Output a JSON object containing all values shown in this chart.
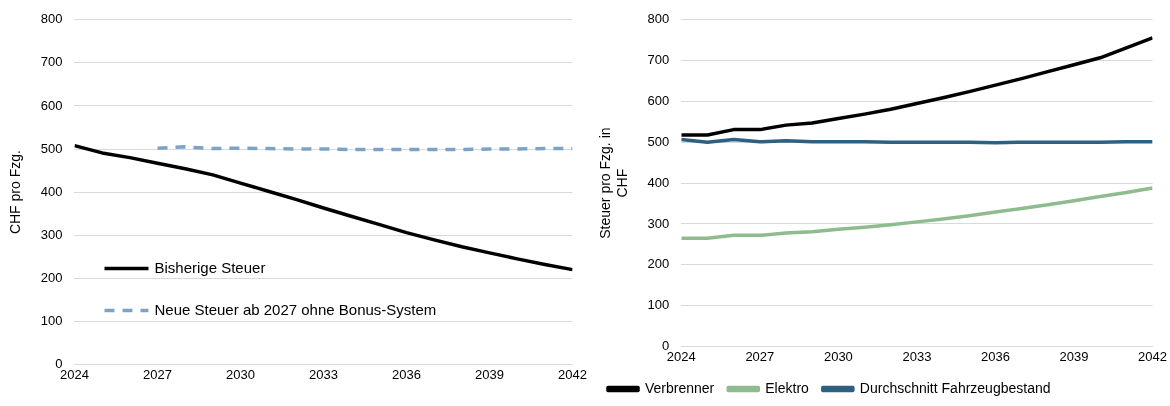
{
  "chart_data": [
    {
      "type": "line",
      "ylabel": "CHF pro Fzg.",
      "x": [
        2024,
        2025,
        2026,
        2027,
        2028,
        2029,
        2030,
        2031,
        2032,
        2033,
        2034,
        2035,
        2036,
        2037,
        2038,
        2039,
        2040,
        2041,
        2042
      ],
      "xlim": [
        2024,
        2042
      ],
      "xticks": [
        2024,
        2027,
        2030,
        2033,
        2036,
        2039,
        2042
      ],
      "ylim": [
        0,
        800
      ],
      "yticks": [
        0,
        100,
        200,
        300,
        400,
        500,
        600,
        700,
        800
      ],
      "grid": "y",
      "legend": "bottom left",
      "marker": "none",
      "series": [
        {
          "name": "Bisherige Steuer",
          "color": "#000000",
          "line_style": "solid",
          "values": [
            508,
            491,
            480,
            467,
            454,
            440,
            421,
            402,
            383,
            363,
            344,
            325,
            306,
            289,
            273,
            259,
            245,
            232,
            220
          ]
        },
        {
          "name": "Neue Steuer ab 2027 ohne Bonus-System",
          "color": "#7ba3c5",
          "line_style": "dashed",
          "values": [
            null,
            null,
            null,
            502,
            505,
            501,
            502,
            501,
            500,
            500,
            499,
            499,
            499,
            499,
            499,
            500,
            500,
            501,
            501
          ]
        }
      ]
    },
    {
      "type": "line",
      "ylabel": "Steuer pro Fzg. in CHF",
      "x": [
        2024,
        2025,
        2026,
        2027,
        2028,
        2029,
        2030,
        2031,
        2032,
        2033,
        2034,
        2035,
        2036,
        2037,
        2038,
        2039,
        2040,
        2041,
        2042
      ],
      "xlim": [
        2024,
        2042
      ],
      "xticks": [
        2024,
        2027,
        2030,
        2033,
        2036,
        2039,
        2042
      ],
      "ylim": [
        0,
        800
      ],
      "yticks": [
        0,
        100,
        200,
        300,
        400,
        500,
        600,
        700,
        800
      ],
      "grid": "y",
      "legend": "bottom",
      "marker": "none",
      "series": [
        {
          "name": "Verbrenner",
          "color": "#000000",
          "line_style": "solid",
          "values": [
            518,
            518,
            531,
            531,
            542,
            547,
            558,
            569,
            581,
            595,
            609,
            624,
            640,
            656,
            673,
            690,
            707,
            731,
            756
          ]
        },
        {
          "name": "Elektro",
          "color": "#8fbc8f",
          "line_style": "solid",
          "values": [
            265,
            265,
            272,
            272,
            278,
            281,
            287,
            292,
            298,
            305,
            312,
            320,
            329,
            338,
            347,
            357,
            367,
            377,
            388
          ]
        },
        {
          "name": "Durchschnitt Fahrzeugbestand",
          "color": "#2e6082",
          "line_style": "solid",
          "values": [
            507,
            500,
            507,
            501,
            504,
            501,
            501,
            501,
            500,
            500,
            500,
            500,
            499,
            500,
            500,
            500,
            500,
            501,
            501
          ]
        }
      ]
    }
  ]
}
